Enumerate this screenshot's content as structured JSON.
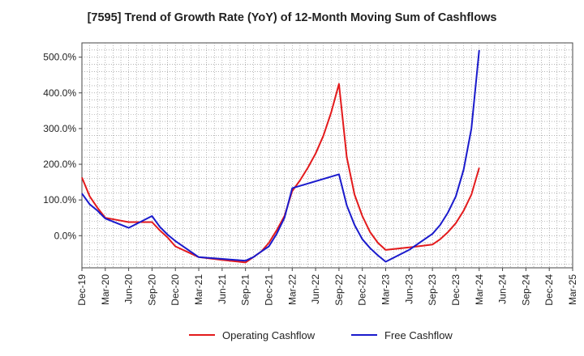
{
  "chart_data": {
    "type": "line",
    "title": "[7595]  Trend of Growth Rate (YoY) of 12-Month Moving Sum of Cashflows",
    "xlabel": "",
    "ylabel": "",
    "ylim": [
      -90,
      540
    ],
    "y_ticks": [
      0,
      100,
      200,
      300,
      400,
      500
    ],
    "y_tick_labels": [
      "0.0%",
      "100.0%",
      "200.0%",
      "300.0%",
      "400.0%",
      "500.0%"
    ],
    "x_tick_labels": [
      "Dec-19",
      "Mar-20",
      "Jun-20",
      "Sep-20",
      "Dec-20",
      "Mar-21",
      "Jun-21",
      "Sep-21",
      "Dec-21",
      "Mar-22",
      "Jun-22",
      "Sep-22",
      "Dec-22",
      "Mar-23",
      "Jun-23",
      "Sep-23",
      "Dec-23",
      "Mar-24",
      "Jun-24",
      "Sep-24",
      "Dec-24",
      "Mar-25"
    ],
    "x_months": 63,
    "grid": true,
    "legend_position": "bottom",
    "series": [
      {
        "name": "Operating Cashflow",
        "color": "#e31a1c",
        "points": [
          [
            0,
            163
          ],
          [
            1,
            110
          ],
          [
            2,
            78
          ],
          [
            3,
            50
          ],
          [
            6,
            38
          ],
          [
            9,
            38
          ],
          [
            10,
            15
          ],
          [
            11,
            -5
          ],
          [
            12,
            -30
          ],
          [
            15,
            -60
          ],
          [
            18,
            -68
          ],
          [
            21,
            -75
          ],
          [
            22,
            -60
          ],
          [
            23,
            -45
          ],
          [
            24,
            -20
          ],
          [
            25,
            15
          ],
          [
            26,
            55
          ],
          [
            27,
            125
          ],
          [
            28,
            155
          ],
          [
            29,
            190
          ],
          [
            30,
            230
          ],
          [
            31,
            280
          ],
          [
            32,
            345
          ],
          [
            33,
            425
          ],
          [
            34,
            220
          ],
          [
            35,
            115
          ],
          [
            36,
            55
          ],
          [
            37,
            10
          ],
          [
            38,
            -20
          ],
          [
            39,
            -40
          ],
          [
            42,
            -33
          ],
          [
            45,
            -25
          ],
          [
            46,
            -10
          ],
          [
            47,
            10
          ],
          [
            48,
            35
          ],
          [
            49,
            70
          ],
          [
            50,
            115
          ],
          [
            51,
            190
          ]
        ]
      },
      {
        "name": "Free Cashflow",
        "color": "#1a1acc",
        "points": [
          [
            0,
            118
          ],
          [
            1,
            88
          ],
          [
            2,
            70
          ],
          [
            3,
            48
          ],
          [
            6,
            22
          ],
          [
            9,
            55
          ],
          [
            10,
            25
          ],
          [
            11,
            3
          ],
          [
            12,
            -15
          ],
          [
            15,
            -60
          ],
          [
            18,
            -65
          ],
          [
            21,
            -70
          ],
          [
            22,
            -60
          ],
          [
            23,
            -45
          ],
          [
            24,
            -30
          ],
          [
            25,
            5
          ],
          [
            26,
            50
          ],
          [
            27,
            133
          ],
          [
            33,
            172
          ],
          [
            34,
            85
          ],
          [
            35,
            30
          ],
          [
            36,
            -10
          ],
          [
            37,
            -35
          ],
          [
            38,
            -55
          ],
          [
            39,
            -73
          ],
          [
            42,
            -40
          ],
          [
            45,
            5
          ],
          [
            46,
            30
          ],
          [
            47,
            65
          ],
          [
            48,
            110
          ],
          [
            49,
            185
          ],
          [
            50,
            300
          ],
          [
            51,
            520
          ]
        ]
      }
    ]
  }
}
